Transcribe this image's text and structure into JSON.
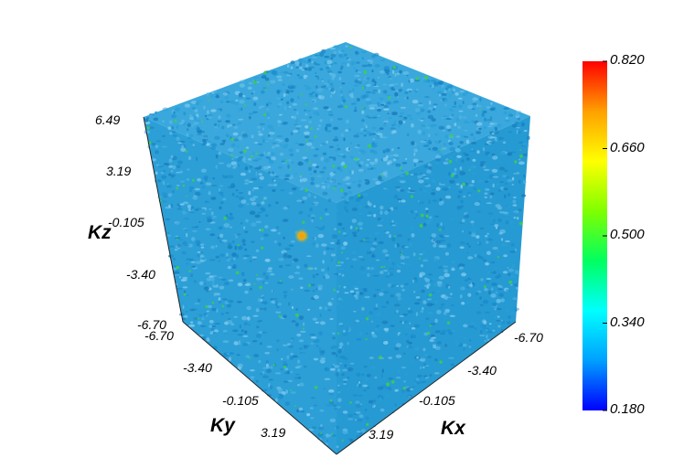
{
  "chart_data": {
    "type": "volume-3d",
    "axes": {
      "x": {
        "label": "Kx",
        "ticks": [
          "-6.70",
          "-3.40",
          "-0.105",
          "3.19"
        ],
        "range": [
          -6.7,
          6.49
        ]
      },
      "y": {
        "label": "Ky",
        "ticks": [
          "-6.70",
          "-3.40",
          "-0.105",
          "3.19"
        ],
        "range": [
          -6.7,
          6.49
        ]
      },
      "z": {
        "label": "Kz",
        "ticks": [
          "6.49",
          "3.19",
          "-0.105",
          "-3.40",
          "-6.70"
        ],
        "range": [
          -6.7,
          6.49
        ]
      }
    },
    "colorbar": {
      "ticks": [
        "0.820",
        "0.660",
        "0.500",
        "0.340",
        "0.180"
      ],
      "range": [
        0.18,
        0.82
      ],
      "colormap": [
        "#0000ff",
        "#00a0ff",
        "#00ffff",
        "#00ff60",
        "#80ff00",
        "#ffff00",
        "#ffa000",
        "#ff0000"
      ]
    },
    "dominant_value": 0.26,
    "hotspots": [
      {
        "kx": -0.105,
        "ky": -0.105,
        "kz": -0.105,
        "value": 0.66
      }
    ],
    "grid": false
  },
  "colors": {
    "base_blue": "#2a9fd8",
    "light_blue": "#59b8e6",
    "dark_blue": "#1b7fbf",
    "green": "#3fd04a",
    "orange": "#e08a18"
  }
}
